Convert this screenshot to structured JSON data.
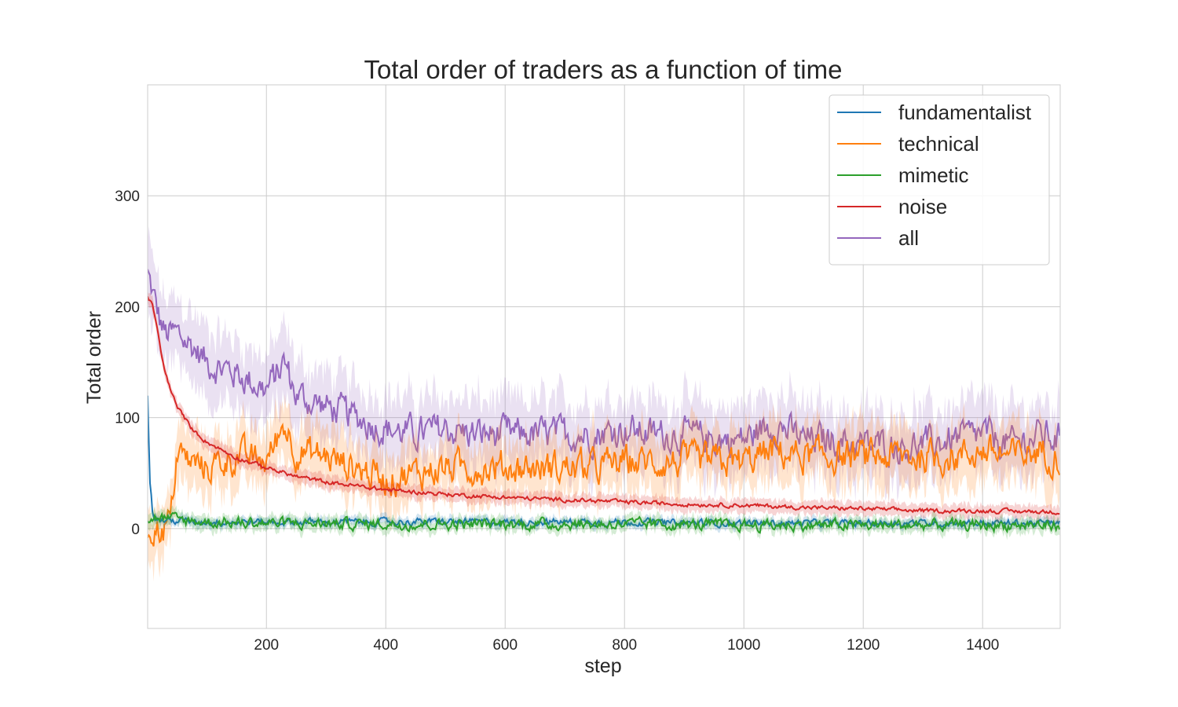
{
  "chart_data": {
    "type": "line",
    "title": "Total order of traders as a function of time",
    "xlabel": "step",
    "ylabel": "Total order",
    "xlim": [
      1,
      1530
    ],
    "ylim": [
      -90,
      400
    ],
    "xticks": [
      200,
      400,
      600,
      800,
      1000,
      1200,
      1400
    ],
    "yticks": [
      0,
      100,
      200,
      300
    ],
    "grid": true,
    "legend_position": "top-right",
    "confidence_band": true,
    "series": [
      {
        "name": "fundamentalist",
        "color": "#1f77b4",
        "x": [
          1,
          5,
          10,
          20,
          40,
          60,
          100,
          150,
          200,
          300,
          400,
          500,
          600,
          700,
          800,
          900,
          1000,
          1100,
          1200,
          1300,
          1400,
          1500,
          1530
        ],
        "values": [
          120,
          40,
          10,
          8,
          7,
          7,
          6,
          6,
          6,
          6,
          6,
          6,
          6,
          6,
          6,
          5,
          5,
          5,
          5,
          5,
          5,
          5,
          5
        ]
      },
      {
        "name": "technical",
        "color": "#ff7f0e",
        "x": [
          1,
          30,
          40,
          50,
          70,
          100,
          150,
          200,
          230,
          250,
          300,
          350,
          400,
          450,
          500,
          550,
          600,
          650,
          700,
          750,
          800,
          850,
          900,
          950,
          1000,
          1050,
          1100,
          1150,
          1200,
          1250,
          1300,
          1350,
          1400,
          1450,
          1500,
          1530
        ],
        "values": [
          0,
          0,
          10,
          70,
          60,
          55,
          65,
          60,
          95,
          70,
          65,
          55,
          45,
          50,
          55,
          55,
          55,
          55,
          55,
          55,
          60,
          60,
          60,
          60,
          60,
          70,
          65,
          65,
          65,
          65,
          65,
          65,
          70,
          65,
          70,
          65
        ]
      },
      {
        "name": "mimetic",
        "color": "#2ca02c",
        "x": [
          1,
          20,
          50,
          100,
          200,
          400,
          600,
          800,
          1000,
          1200,
          1400,
          1530
        ],
        "values": [
          8,
          10,
          8,
          6,
          5,
          4,
          4,
          4,
          3,
          3,
          3,
          3
        ]
      },
      {
        "name": "noise",
        "color": "#d62728",
        "x": [
          1,
          10,
          20,
          30,
          50,
          75,
          100,
          150,
          200,
          250,
          300,
          400,
          500,
          600,
          700,
          800,
          900,
          1000,
          1100,
          1200,
          1300,
          1400,
          1530
        ],
        "values": [
          210,
          200,
          170,
          140,
          110,
          90,
          78,
          64,
          55,
          47,
          42,
          35,
          31,
          28,
          26,
          24,
          22,
          21,
          19,
          18,
          16,
          16,
          15
        ]
      },
      {
        "name": "all",
        "color": "#9467bd",
        "x": [
          1,
          10,
          20,
          30,
          50,
          75,
          100,
          150,
          200,
          230,
          250,
          300,
          350,
          400,
          450,
          500,
          550,
          600,
          650,
          700,
          750,
          800,
          850,
          900,
          950,
          1000,
          1050,
          1100,
          1150,
          1200,
          1250,
          1300,
          1350,
          1400,
          1450,
          1500,
          1530
        ],
        "values": [
          230,
          210,
          190,
          175,
          175,
          165,
          150,
          140,
          125,
          150,
          120,
          110,
          100,
          90,
          85,
          90,
          85,
          85,
          85,
          85,
          85,
          90,
          85,
          85,
          80,
          80,
          95,
          80,
          80,
          75,
          75,
          75,
          80,
          85,
          75,
          85,
          80
        ]
      }
    ]
  }
}
